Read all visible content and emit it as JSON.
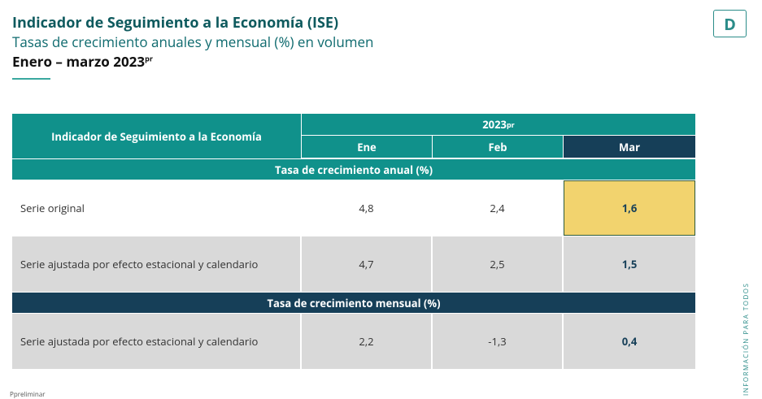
{
  "header": {
    "title": "Indicador de Seguimiento a la Economía (ISE)",
    "subtitle": "Tasas de crecimiento anuales y mensual (%) en volumen",
    "period": "Enero – marzo 2023",
    "period_sup": "pr",
    "logo": "D"
  },
  "table": {
    "corner": "Indicador de Seguimiento a la Economía",
    "year": "2023",
    "year_sup": "pr",
    "months": [
      "Ene",
      "Feb",
      "Mar"
    ],
    "sections": [
      {
        "title": "Tasa de crecimiento anual (%)",
        "rows": [
          [
            "Serie original",
            "4,8",
            "2,4",
            "1,6"
          ],
          [
            "Serie ajustada por efecto estacional y calendario",
            "4,7",
            "2,5",
            "1,5"
          ]
        ]
      },
      {
        "title": "Tasa de crecimiento mensual (%)",
        "rows": [
          [
            "Serie ajustada por efecto estacional y calendario",
            "2,2",
            "-1,3",
            "0,4"
          ]
        ]
      }
    ]
  },
  "footer": {
    "note": "Ppreliminar",
    "side": "INFORMACIÓN PARA TODOS"
  }
}
